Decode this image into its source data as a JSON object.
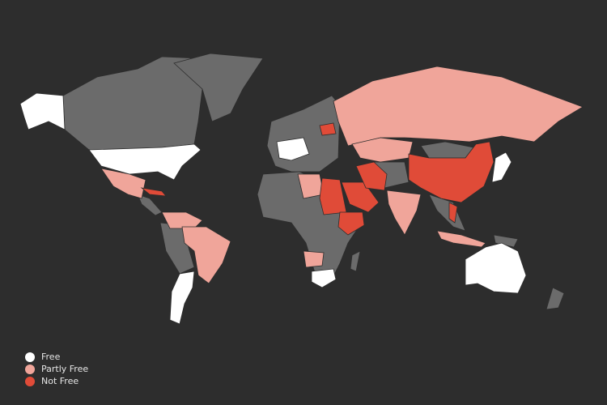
{
  "colors": {
    "background": "#2d2d2d",
    "no_data": "#6b6b6b",
    "free": "#ffffff",
    "partly_free": "#f0a59a",
    "not_free": "#e04b38"
  },
  "legend": [
    {
      "label": "Free",
      "color": "#ffffff"
    },
    {
      "label": "Partly Free",
      "color": "#f0a59a"
    },
    {
      "label": "Not Free",
      "color": "#e04b38"
    }
  ]
}
